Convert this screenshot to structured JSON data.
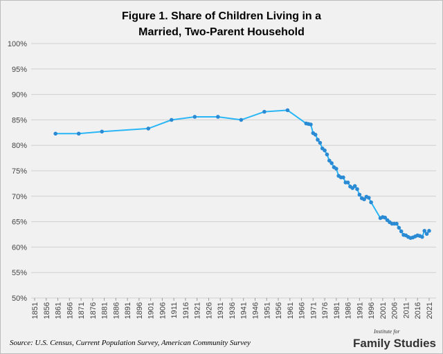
{
  "chart_data": {
    "type": "line",
    "title": [
      "Figure 1. Share of Children Living in a",
      "Married, Two-Parent Household"
    ],
    "source": "Source: U.S. Census, Current Population Survey, American Community Survey",
    "logo": {
      "small": "Institute for",
      "large": "Family Studies"
    },
    "x": [
      1860,
      1870,
      1880,
      1900,
      1910,
      1920,
      1930,
      1940,
      1950,
      1960,
      1968,
      1969,
      1970,
      1971,
      1972,
      1973,
      1974,
      1975,
      1976,
      1977,
      1978,
      1979,
      1980,
      1981,
      1982,
      1983,
      1984,
      1985,
      1986,
      1987,
      1988,
      1989,
      1990,
      1991,
      1992,
      1993,
      1994,
      1995,
      1996,
      2000,
      2001,
      2002,
      2003,
      2004,
      2005,
      2006,
      2007,
      2008,
      2009,
      2010,
      2011,
      2012,
      2013,
      2014,
      2015,
      2016,
      2017,
      2018,
      2019,
      2020,
      2021
    ],
    "series": [
      {
        "name": "Share of children",
        "color": "#29b6f6",
        "marker_color": "#2a8ad4",
        "values": [
          82.3,
          82.3,
          82.7,
          83.3,
          85.0,
          85.6,
          85.6,
          85.0,
          86.6,
          86.9,
          84.3,
          84.2,
          84.1,
          82.4,
          82.1,
          81.1,
          80.5,
          79.4,
          79.0,
          78.2,
          77.0,
          76.5,
          75.7,
          75.4,
          74.0,
          73.7,
          73.7,
          72.7,
          72.7,
          71.9,
          71.6,
          72.0,
          71.4,
          70.3,
          69.6,
          69.4,
          69.9,
          69.7,
          68.8,
          65.7,
          65.9,
          65.8,
          65.3,
          64.9,
          64.6,
          64.6,
          64.6,
          63.8,
          63.1,
          62.4,
          62.3,
          62.0,
          61.8,
          61.9,
          62.1,
          62.3,
          62.2,
          62.0,
          63.2,
          62.6,
          63.2
        ]
      }
    ],
    "xlim": [
      1849.5,
      2024
    ],
    "xticks": [
      1851,
      1856,
      1861,
      1866,
      1871,
      1876,
      1881,
      1886,
      1891,
      1896,
      1901,
      1906,
      1911,
      1916,
      1921,
      1926,
      1931,
      1936,
      1941,
      1946,
      1951,
      1956,
      1961,
      1966,
      1971,
      1976,
      1981,
      1986,
      1991,
      1996,
      2001,
      2006,
      2011,
      2016,
      2021
    ],
    "ylim": [
      50,
      100
    ],
    "yticks": [
      {
        "value": 50,
        "label": "50%"
      },
      {
        "value": 55,
        "label": "55%"
      },
      {
        "value": 60,
        "label": "60%"
      },
      {
        "value": 65,
        "label": "65%"
      },
      {
        "value": 70,
        "label": "70%"
      },
      {
        "value": 75,
        "label": "75%"
      },
      {
        "value": 80,
        "label": "80%"
      },
      {
        "value": 85,
        "label": "85%"
      },
      {
        "value": 90,
        "label": "90%"
      },
      {
        "value": 95,
        "label": "95%"
      },
      {
        "value": 100,
        "label": "100%"
      }
    ],
    "grid": true
  }
}
